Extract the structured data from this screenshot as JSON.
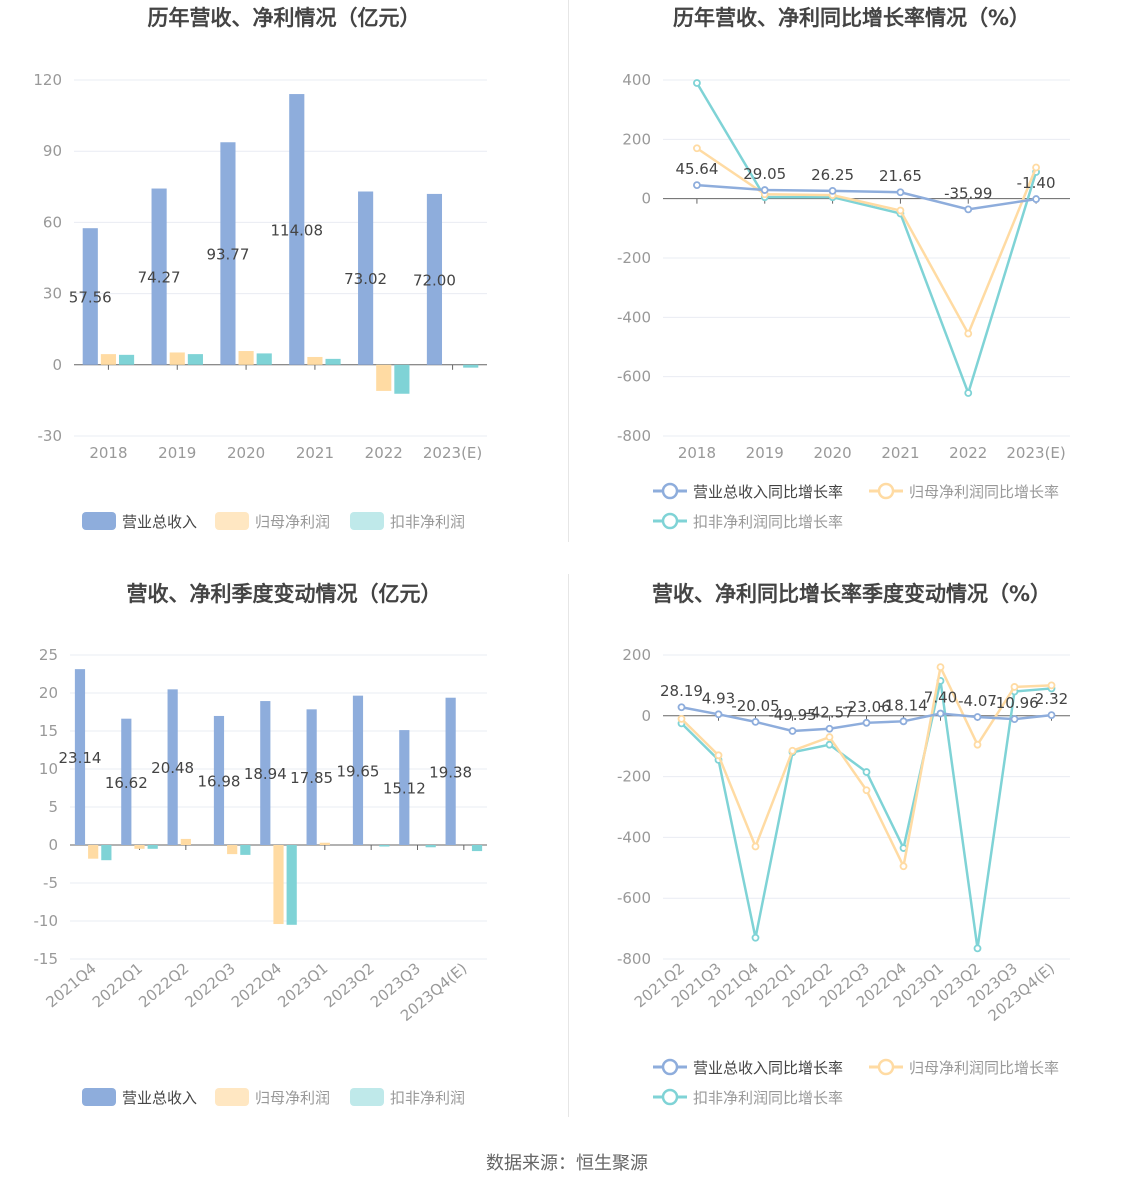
{
  "colors": {
    "revenue": "#8eaddc",
    "parent_np": "#ffdba3",
    "deducted_np": "#7fd3d6",
    "revenue_legend": "#8eaddc",
    "parent_np_legend": "#ffe7c2",
    "deducted_np_legend": "#bfe9ea",
    "axis_text": "#999999",
    "grid": "#e9ecf3",
    "title": "#444444",
    "label": "#444444"
  },
  "source": "数据来源：恒生聚源",
  "chart_data": [
    {
      "type": "bar",
      "title": "历年营收、净利情况（亿元）",
      "categories": [
        "2018",
        "2019",
        "2020",
        "2021",
        "2022",
        "2023(E)"
      ],
      "ylim": [
        -30,
        120
      ],
      "yticks": [
        -30,
        0,
        30,
        60,
        90,
        120
      ],
      "series": [
        {
          "name": "营业总收入",
          "values": [
            57.56,
            74.27,
            93.77,
            114.08,
            73.02,
            72.0
          ],
          "labels": [
            "57.56",
            "74.27",
            "93.77",
            "114.08",
            "73.02",
            "72.00"
          ]
        },
        {
          "name": "归母净利润",
          "values": [
            4.5,
            5.2,
            5.8,
            3.3,
            -11.0,
            0
          ]
        },
        {
          "name": "扣非净利润",
          "values": [
            4.2,
            4.5,
            4.8,
            2.5,
            -12.2,
            -1.2
          ]
        }
      ],
      "legend": "bottom"
    },
    {
      "type": "line",
      "title": "历年营收、净利同比增长率情况（%）",
      "categories": [
        "2018",
        "2019",
        "2020",
        "2021",
        "2022",
        "2023(E)"
      ],
      "ylim": [
        -800,
        400
      ],
      "yticks": [
        -800,
        -600,
        -400,
        -200,
        0,
        200,
        400
      ],
      "series": [
        {
          "name": "营业总收入同比增长率",
          "values": [
            45.64,
            29.05,
            26.25,
            21.65,
            -35.99,
            -1.4
          ],
          "labels": [
            "45.64",
            "29.05",
            "26.25",
            "21.65",
            "-35.99",
            "-1.40"
          ]
        },
        {
          "name": "归母净利润同比增长率",
          "values": [
            170,
            15,
            12,
            -40,
            -455,
            105
          ]
        },
        {
          "name": "扣非净利润同比增长率",
          "values": [
            390,
            5,
            5,
            -50,
            -655,
            90
          ]
        }
      ],
      "legend": "bottom"
    },
    {
      "type": "bar",
      "title": "营收、净利季度变动情况（亿元）",
      "categories": [
        "2021Q4",
        "2022Q1",
        "2022Q2",
        "2022Q3",
        "2022Q4",
        "2023Q1",
        "2023Q2",
        "2023Q3",
        "2023Q4(E)"
      ],
      "ylim": [
        -15,
        25
      ],
      "yticks": [
        -15,
        -10,
        -5,
        0,
        5,
        10,
        15,
        20,
        25
      ],
      "series": [
        {
          "name": "营业总收入",
          "values": [
            23.14,
            16.62,
            20.48,
            16.98,
            18.94,
            17.85,
            19.65,
            15.12,
            19.38
          ],
          "labels": [
            "23.14",
            "16.62",
            "20.48",
            "16.98",
            "18.94",
            "17.85",
            "19.65",
            "15.12",
            "19.38"
          ]
        },
        {
          "name": "归母净利润",
          "values": [
            -1.8,
            -0.5,
            0.8,
            -1.2,
            -10.4,
            0.3,
            0,
            0,
            0
          ]
        },
        {
          "name": "扣非净利润",
          "values": [
            -2.0,
            -0.5,
            0,
            -1.3,
            -10.5,
            0,
            -0.2,
            -0.3,
            -0.8
          ]
        }
      ],
      "legend": "bottom"
    },
    {
      "type": "line",
      "title": "营收、净利同比增长率季度变动情况（%）",
      "categories": [
        "2021Q2",
        "2021Q3",
        "2021Q4",
        "2022Q1",
        "2022Q2",
        "2022Q3",
        "2022Q4",
        "2023Q1",
        "2023Q2",
        "2023Q3",
        "2023Q4(E)"
      ],
      "ylim": [
        -800,
        200
      ],
      "yticks": [
        -800,
        -600,
        -400,
        -200,
        0,
        200
      ],
      "series": [
        {
          "name": "营业总收入同比增长率",
          "values": [
            28.19,
            4.93,
            -20.05,
            -49.95,
            -42.57,
            -23.06,
            -18.14,
            7.4,
            -4.07,
            -10.96,
            2.32
          ],
          "labels": [
            "28.19",
            "4.93",
            "-20.05",
            "-49.95",
            "-42.57",
            "-23.06",
            "-18.14",
            "7.40",
            "-4.07",
            "-10.96",
            "2.32"
          ]
        },
        {
          "name": "归母净利润同比增长率",
          "values": [
            -10,
            -130,
            -430,
            -115,
            -70,
            -245,
            -495,
            160,
            -95,
            95,
            100
          ]
        },
        {
          "name": "扣非净利润同比增长率",
          "values": [
            -25,
            -145,
            -730,
            -120,
            -95,
            -185,
            -435,
            115,
            -765,
            80,
            90
          ]
        }
      ],
      "legend": "bottom"
    }
  ]
}
